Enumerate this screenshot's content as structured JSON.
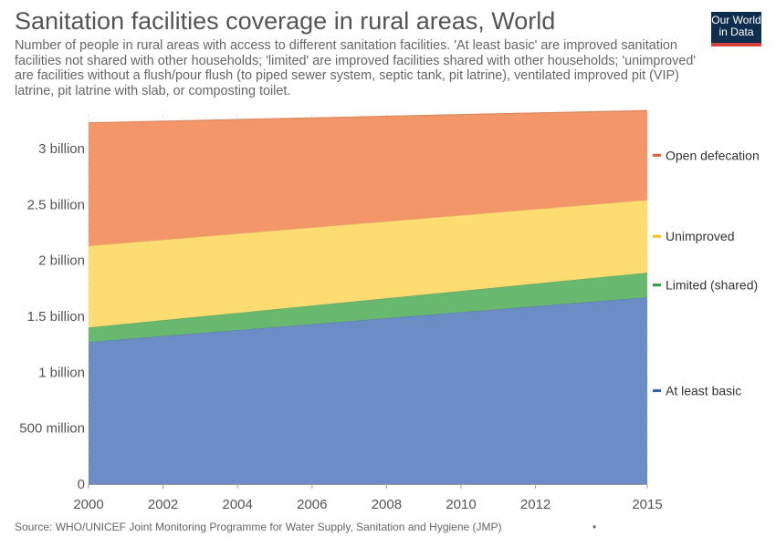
{
  "title": "Sanitation facilities coverage in rural areas, World",
  "subtitle": "Number of people in rural areas with access to different sanitation facilities. 'At least basic' are improved sanitation facilities not shared with other households; 'limited' are improved facilities shared with other households; 'unimproved' are facilities without a flush/pour flush (to piped sewer system, septic tank, pit latrine), ventilated improved pit (VIP) latrine, pit latrine with slab, or composting toilet.",
  "logo": {
    "line1": "Our World",
    "line2": "in Data"
  },
  "source": "Source: WHO/UNICEF Joint Monitoring Programme for Water Supply, Sanitation and Hygiene (JMP)",
  "footer_dot": "•",
  "chart_data": {
    "type": "area",
    "stacked": true,
    "title": "Sanitation facilities coverage in rural areas, World",
    "x": [
      2000,
      2015
    ],
    "x_ticks": [
      "2000",
      "2002",
      "2004",
      "2006",
      "2008",
      "2010",
      "2012",
      "2015"
    ],
    "x_tick_values": [
      2000,
      2002,
      2004,
      2006,
      2008,
      2010,
      2012,
      2015
    ],
    "ylim": [
      0,
      3350000000
    ],
    "y_ticks": [
      {
        "value": 0,
        "label": "0"
      },
      {
        "value": 500000000,
        "label": "500 million"
      },
      {
        "value": 1000000000,
        "label": "1 billion"
      },
      {
        "value": 1500000000,
        "label": "1.5 billion"
      },
      {
        "value": 2000000000,
        "label": "2 billion"
      },
      {
        "value": 2500000000,
        "label": "2.5 billion"
      },
      {
        "value": 3000000000,
        "label": "3 billion"
      }
    ],
    "grid": "vertical dashed",
    "legend_position": "right",
    "series": [
      {
        "name": "At least basic",
        "values": [
          1270000000,
          1670000000
        ],
        "color": "#6b8cc4",
        "legend_color": "#3360a9"
      },
      {
        "name": "Limited (shared)",
        "values": [
          130000000,
          220000000
        ],
        "color": "#69b86f",
        "legend_color": "#2c9e3e"
      },
      {
        "name": "Unimproved",
        "values": [
          730000000,
          650000000
        ],
        "color": "#fddd72",
        "legend_color": "#f5c518"
      },
      {
        "name": "Open defecation",
        "values": [
          1100000000,
          800000000
        ],
        "color": "#f3976a",
        "legend_color": "#e35f2e"
      }
    ]
  }
}
